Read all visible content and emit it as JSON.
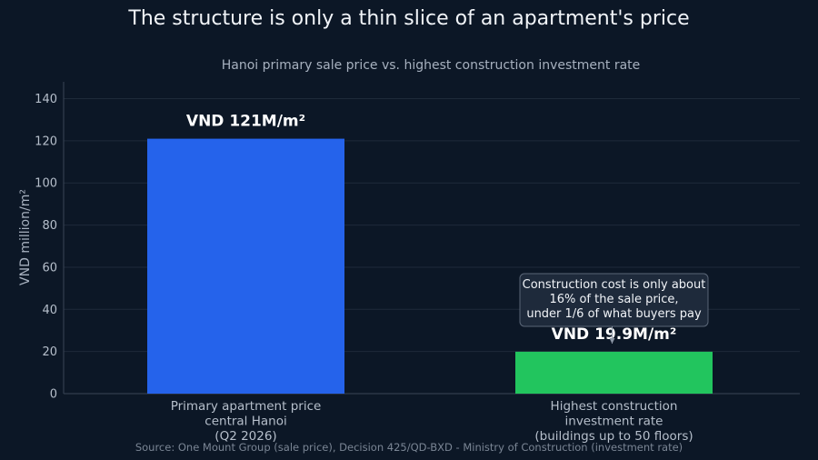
{
  "chart_data": {
    "type": "bar",
    "title": "The structure is only a thin slice of an apartment's price",
    "subtitle": "Hanoi primary sale price vs. highest construction investment rate",
    "ylabel": "VND million/m²",
    "ylim": [
      0,
      148
    ],
    "yticks": [
      "0",
      "20",
      "40",
      "60",
      "80",
      "100",
      "120",
      "140"
    ],
    "grid": true,
    "categories": [
      [
        "Primary apartment price",
        "central Hanoi",
        "(Q2 2026)"
      ],
      [
        "Highest construction",
        "investment rate",
        "(buildings up to 50 floors)"
      ]
    ],
    "values": [
      121,
      19.9
    ],
    "data_labels": [
      "VND 121M/m²",
      "VND 19.9M/m²"
    ],
    "colors": [
      "#2563eb",
      "#22c55e"
    ],
    "annotation": {
      "lines": [
        "Construction cost is only about",
        "16% of the sale price,",
        "under 1/6 of what buyers pay"
      ],
      "target_index": 1
    },
    "source": "Source: One Mount Group (sale price), Decision 425/QD-BXD - Ministry of Construction (investment rate)"
  }
}
